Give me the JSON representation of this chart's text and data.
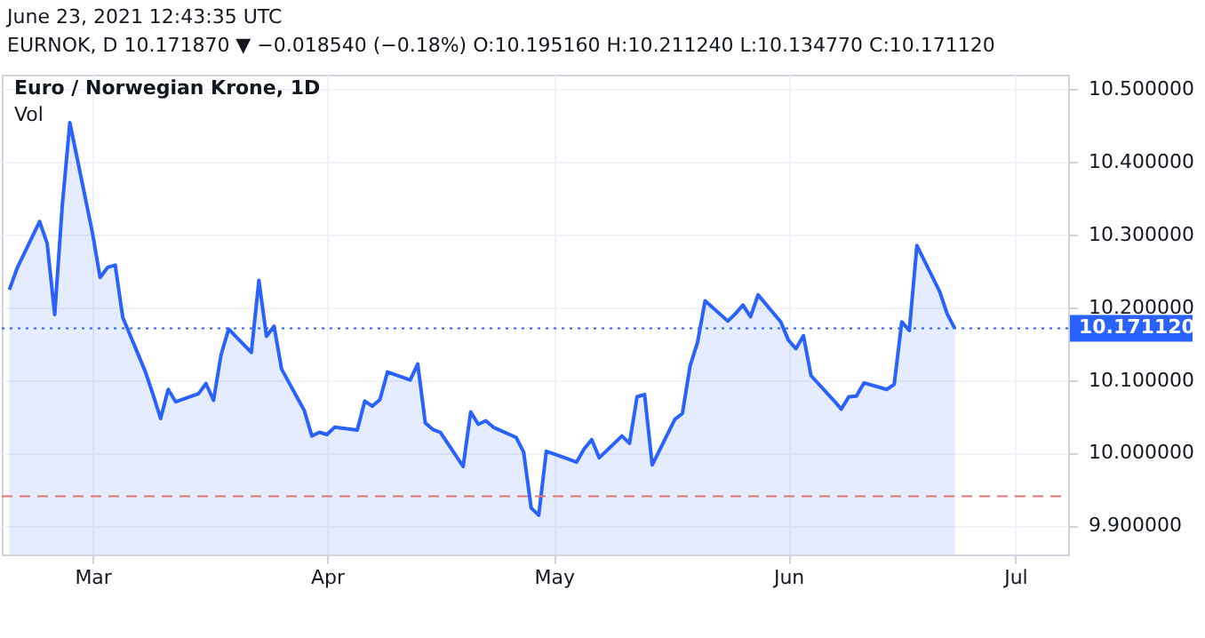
{
  "chart_data": {
    "type": "area",
    "title": "Euro / Norwegian Krone, 1D",
    "annotations": [
      "June 23, 2021 12:43:35 UTC",
      "EURNOK, D  10.171870 ▼ −0.018540 (−0.18%)  O:10.195160  H:10.211240  L:10.134770  C:10.171120",
      "Vol"
    ],
    "x": [
      "2021-02-18",
      "2021-02-19",
      "2021-02-22",
      "2021-02-23",
      "2021-02-24",
      "2021-02-25",
      "2021-02-26",
      "2021-03-01",
      "2021-03-02",
      "2021-03-03",
      "2021-03-04",
      "2021-03-05",
      "2021-03-08",
      "2021-03-09",
      "2021-03-10",
      "2021-03-11",
      "2021-03-12",
      "2021-03-15",
      "2021-03-16",
      "2021-03-17",
      "2021-03-18",
      "2021-03-19",
      "2021-03-22",
      "2021-03-23",
      "2021-03-24",
      "2021-03-25",
      "2021-03-26",
      "2021-03-29",
      "2021-03-30",
      "2021-03-31",
      "2021-04-01",
      "2021-04-02",
      "2021-04-05",
      "2021-04-06",
      "2021-04-07",
      "2021-04-08",
      "2021-04-09",
      "2021-04-12",
      "2021-04-13",
      "2021-04-14",
      "2021-04-15",
      "2021-04-16",
      "2021-04-19",
      "2021-04-20",
      "2021-04-21",
      "2021-04-22",
      "2021-04-23",
      "2021-04-26",
      "2021-04-27",
      "2021-04-28",
      "2021-04-29",
      "2021-04-30",
      "2021-05-03",
      "2021-05-04",
      "2021-05-05",
      "2021-05-06",
      "2021-05-07",
      "2021-05-10",
      "2021-05-11",
      "2021-05-12",
      "2021-05-13",
      "2021-05-14",
      "2021-05-17",
      "2021-05-18",
      "2021-05-19",
      "2021-05-20",
      "2021-05-21",
      "2021-05-24",
      "2021-05-25",
      "2021-05-26",
      "2021-05-27",
      "2021-05-28",
      "2021-05-31",
      "2021-06-01",
      "2021-06-02",
      "2021-06-03",
      "2021-06-04",
      "2021-06-07",
      "2021-06-08",
      "2021-06-09",
      "2021-06-10",
      "2021-06-11",
      "2021-06-14",
      "2021-06-15",
      "2021-06-16",
      "2021-06-17",
      "2021-06-18",
      "2021-06-21",
      "2021-06-22",
      "2021-06-23"
    ],
    "series": [
      {
        "color": "#2962ff",
        "values": [
          10.224,
          10.253,
          10.318,
          10.288,
          10.19,
          10.34,
          10.454,
          10.302,
          10.241,
          10.255,
          10.258,
          10.186,
          10.111,
          10.08,
          10.047,
          10.087,
          10.07,
          10.081,
          10.095,
          10.072,
          10.135,
          10.17,
          10.138,
          10.237,
          10.16,
          10.174,
          10.115,
          10.058,
          10.023,
          10.028,
          10.025,
          10.035,
          10.031,
          10.071,
          10.064,
          10.073,
          10.111,
          10.1,
          10.122,
          10.041,
          10.032,
          10.028,
          9.981,
          10.056,
          10.039,
          10.044,
          10.035,
          10.021,
          10.001,
          9.924,
          9.914,
          10.002,
          9.991,
          9.987,
          10.005,
          10.018,
          9.993,
          10.023,
          10.013,
          10.077,
          10.08,
          9.983,
          10.046,
          10.054,
          10.119,
          10.152,
          10.209,
          10.181,
          10.191,
          10.203,
          10.187,
          10.217,
          10.18,
          10.155,
          10.143,
          10.161,
          10.106,
          10.072,
          10.06,
          10.077,
          10.078,
          10.096,
          10.087,
          10.094,
          10.18,
          10.168,
          10.285,
          10.222,
          10.191,
          10.171
        ]
      }
    ],
    "xlim": [
      "2021-02-17",
      "2021-07-08"
    ],
    "xticks": [
      {
        "value": "2021-03-01",
        "label": "Mar"
      },
      {
        "value": "2021-04-01",
        "label": "Apr"
      },
      {
        "value": "2021-05-01",
        "label": "May"
      },
      {
        "value": "2021-06-01",
        "label": "Jun"
      },
      {
        "value": "2021-07-01",
        "label": "Jul"
      }
    ],
    "ylim": [
      9.86,
      10.52
    ],
    "yticks": [
      {
        "value": 9.9,
        "label": "9.900000"
      },
      {
        "value": 10.0,
        "label": "10.000000"
      },
      {
        "value": 10.1,
        "label": "10.100000"
      },
      {
        "value": 10.2,
        "label": "10.200000"
      },
      {
        "value": 10.3,
        "label": "10.300000"
      },
      {
        "value": 10.4,
        "label": "10.400000"
      },
      {
        "value": 10.5,
        "label": "10.500000"
      }
    ],
    "ref_lines": [
      {
        "axis": "y",
        "value": 10.17112,
        "label": "10.171120",
        "color": "#2962ff",
        "line_style": "dotted"
      },
      {
        "axis": "y",
        "value": 9.94,
        "color": "#e57373",
        "line_style": "dashed"
      }
    ],
    "grid": true,
    "marker": "none",
    "line_style": "solid"
  }
}
